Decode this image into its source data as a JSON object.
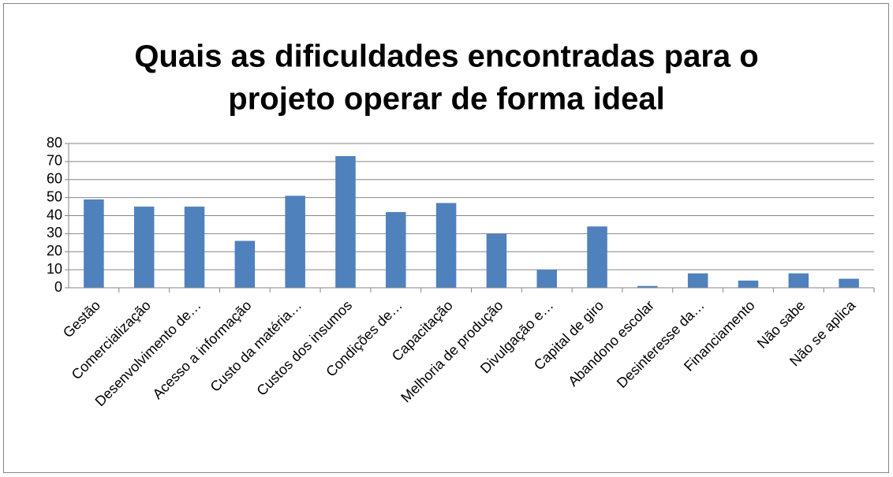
{
  "chart_data": {
    "type": "bar",
    "title": [
      "Quais as dificuldades encontradas para o",
      "projeto operar de forma ideal"
    ],
    "categories": [
      "Gestão",
      "Comercialização",
      "Desenvolvimento de…",
      "Acesso a informação",
      "Custo da matéria…",
      "Custos dos insumos",
      "Condições de…",
      "Capacitação",
      "Melhoria de produção",
      "Divulgação e…",
      "Capital de giro",
      "Abandono escolar",
      "Desinteresse da…",
      "Financiamento",
      "Não sabe",
      "Não se aplica"
    ],
    "values": [
      49,
      45,
      45,
      26,
      51,
      73,
      42,
      47,
      30,
      10,
      34,
      1,
      8,
      4,
      8,
      5
    ],
    "color": "#4f81bd",
    "ylim": [
      0,
      80
    ],
    "yticks": [
      0,
      10,
      20,
      30,
      40,
      50,
      60,
      70,
      80
    ],
    "grid": true
  }
}
